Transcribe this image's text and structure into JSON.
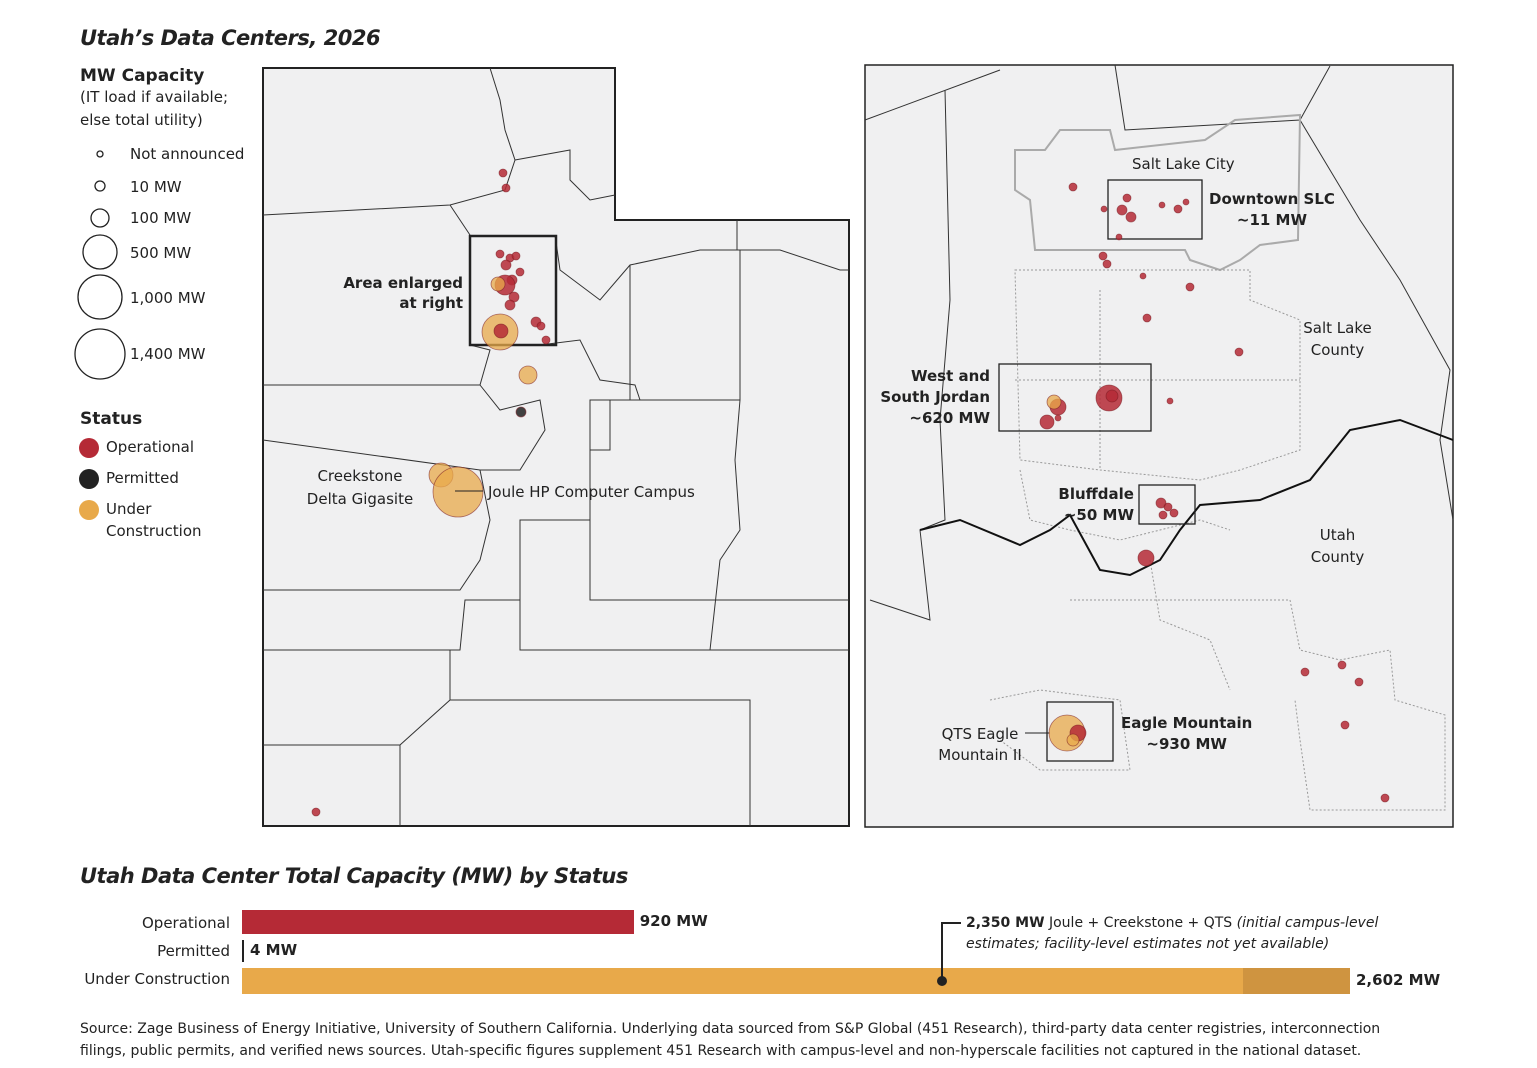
{
  "title": "Utah’s Data Centers, 2026",
  "legend": {
    "capacity_title": "MW Capacity",
    "capacity_note_1": "(IT load if available;",
    "capacity_note_2": "else total utility)",
    "sizes": [
      "Not announced",
      "10 MW",
      "100 MW",
      "500 MW",
      "1,000 MW",
      "1,400 MW"
    ],
    "status_title": "Status",
    "statuses": [
      {
        "label": "Operational",
        "color": "#b52a36"
      },
      {
        "label": "Permitted",
        "color": "#222222"
      },
      {
        "label": "Under",
        "label2": "Construction",
        "color": "#e8a94a"
      }
    ]
  },
  "state_map": {
    "labels": {
      "enlarged_1": "Area enlarged",
      "enlarged_2": "at right",
      "creekstone_1": "Creekstone",
      "creekstone_2": "Delta Gigasite",
      "joule": "Joule HP Computer Campus"
    }
  },
  "inset_map": {
    "labels": {
      "slc": "Salt Lake City",
      "downtown_1": "Downtown SLC",
      "downtown_2": "~11 MW",
      "sl_county_1": "Salt Lake",
      "sl_county_2": "County",
      "wsj_1": "West and",
      "wsj_2": "South Jordan",
      "wsj_3": "~620 MW",
      "bluffdale_1": "Bluffdale",
      "bluffdale_2": "~50 MW",
      "utah_county_1": "Utah",
      "utah_county_2": "County",
      "qts_1": "QTS Eagle",
      "qts_2": "Mountain II",
      "eagle_1": "Eagle Mountain",
      "eagle_2": "~930 MW"
    }
  },
  "chart_data": {
    "type": "bar",
    "title": "Utah Data Center Total Capacity (MW) by Status",
    "orientation": "horizontal",
    "categories": [
      "Operational",
      "Permitted",
      "Under Construction"
    ],
    "values": [
      920,
      4,
      2602
    ],
    "value_labels": [
      "920 MW",
      "4 MW",
      "2,602 MW"
    ],
    "colors": [
      "#b52a36",
      "#222222",
      "#e8a94a"
    ],
    "under_construction_split": {
      "campus_level_mw": 2350,
      "remainder_color": "#cf9440"
    },
    "annotation": {
      "bold": "2,350 MW",
      "text": " Joule + Creekstone + QTS ",
      "italic_1": "(initial campus-level",
      "italic_2": "estimates; facility-level estimates not yet available)"
    }
  },
  "source": {
    "line1": "Source: Zage Business of Energy Initiative, University of Southern California. Underlying data sourced from S&P Global (451 Research), third-party data center registries, interconnection",
    "line2": "filings, public permits, and verified news sources. Utah-specific figures supplement 451 Research with campus-level and non-hyperscale facilities not captured in the national dataset."
  }
}
